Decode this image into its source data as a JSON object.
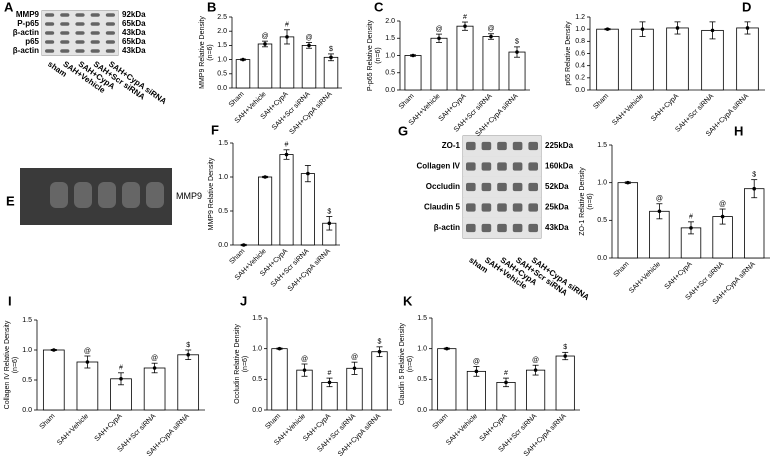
{
  "blots": [
    {
      "panel": "A",
      "rows": [
        {
          "name": "MMP9",
          "size": "92kDa"
        },
        {
          "name": "P-p65",
          "size": "65kDa"
        },
        {
          "name": "β-actin",
          "size": "43kDa"
        },
        {
          "name": "p65",
          "size": "65kDa"
        },
        {
          "name": "β-actin",
          "size": "43kDa"
        }
      ],
      "lanes": [
        "sham",
        "SAH+Vehicle",
        "SAH+CypA",
        "SAH+Scr siRNA",
        "SAH+CypA siRNA"
      ]
    },
    {
      "panel": "E",
      "label": "MMP9"
    },
    {
      "panel": "G",
      "rows": [
        {
          "name": "ZO-1",
          "size": "225kDa"
        },
        {
          "name": "Collagen IV",
          "size": "160kDa"
        },
        {
          "name": "Occludin",
          "size": "52kDa"
        },
        {
          "name": "Claudin 5",
          "size": "25kDa"
        },
        {
          "name": "β-actin",
          "size": "43kDa"
        }
      ],
      "lanes": [
        "sham",
        "SAH+Vehicle",
        "SAH+CypA",
        "SAH+Scr siRNA",
        "SAH+CypA siRNA"
      ]
    }
  ],
  "chart_data": [
    {
      "type": "bar",
      "panel": "B",
      "ylabel": [
        "MMP9 Relative Density",
        "(n=6)"
      ],
      "categories": [
        "Sham",
        "SAH+Vehicle",
        "SAH+CypA",
        "SAH+Scr siRNA",
        "SAH+CypA siRNA"
      ],
      "values": [
        1.0,
        1.55,
        1.8,
        1.5,
        1.08
      ],
      "errors": [
        0.02,
        0.1,
        0.25,
        0.1,
        0.12
      ],
      "annotations": [
        null,
        "@",
        "#",
        "@",
        "$"
      ],
      "ylim": [
        0,
        2.5
      ],
      "yticks": [
        {
          "value": 0,
          "label": "0.0"
        },
        {
          "value": 0.5,
          "label": "0.5"
        },
        {
          "value": 1,
          "label": "1.0"
        },
        {
          "value": 1.5,
          "label": "1.5"
        },
        {
          "value": 2,
          "label": "2.0"
        },
        {
          "value": 2.5,
          "label": "2.5"
        }
      ],
      "color": "#ffffff"
    },
    {
      "type": "bar",
      "panel": "C",
      "ylabel": [
        "P-p65 Relative Density",
        "(n=6)"
      ],
      "categories": [
        "Sham",
        "SAH+Vehicle",
        "SAH+CypA",
        "SAH+Scr siRNA",
        "SAH+CypA siRNA"
      ],
      "values": [
        1.0,
        1.5,
        1.85,
        1.55,
        1.1
      ],
      "errors": [
        0.02,
        0.12,
        0.12,
        0.08,
        0.15
      ],
      "annotations": [
        null,
        "@",
        "#",
        "@",
        "$"
      ],
      "ylim": [
        0,
        2
      ],
      "yticks": [
        {
          "value": 0,
          "label": "0.0"
        },
        {
          "value": 0.5,
          "label": "0.5"
        },
        {
          "value": 1,
          "label": "1.0"
        },
        {
          "value": 1.5,
          "label": "1.5"
        },
        {
          "value": 2,
          "label": "2.0"
        }
      ],
      "color": "#ffffff"
    },
    {
      "type": "bar",
      "panel": "D",
      "ylabel": [
        "p65 Relative Density"
      ],
      "categories": [
        "Sham",
        "SAH+Vehicle",
        "SAH+CypA",
        "SAH+Scr siRNA",
        "SAH+CypA siRNA"
      ],
      "values": [
        1.0,
        1.0,
        1.02,
        0.98,
        1.02
      ],
      "errors": [
        0.01,
        0.12,
        0.1,
        0.14,
        0.1
      ],
      "annotations": [
        null,
        null,
        null,
        null,
        null
      ],
      "ylim": [
        0,
        1.2
      ],
      "yticks": [
        {
          "value": 0,
          "label": "0.0"
        },
        {
          "value": 0.2,
          "label": "0.2"
        },
        {
          "value": 0.4,
          "label": "0.4"
        },
        {
          "value": 0.6,
          "label": "0.6"
        },
        {
          "value": 0.8,
          "label": "0.8"
        },
        {
          "value": 1,
          "label": "1.0"
        },
        {
          "value": 1.2,
          "label": "1.2"
        }
      ],
      "color": "#ffffff"
    },
    {
      "type": "bar",
      "panel": "F",
      "ylabel": [
        "MMP9 Relative Density"
      ],
      "categories": [
        "Sham",
        "SAH+Vehicle",
        "SAH+CypA",
        "SAH+Scr siRNA",
        "SAH+CypA siRNA"
      ],
      "values": [
        0.0,
        1.0,
        1.33,
        1.05,
        0.32
      ],
      "errors": [
        0.01,
        0.01,
        0.07,
        0.12,
        0.1
      ],
      "annotations": [
        null,
        null,
        "#",
        null,
        "$"
      ],
      "ylim": [
        0,
        1.5
      ],
      "yticks": [
        {
          "value": 0,
          "label": "0.0"
        },
        {
          "value": 0.5,
          "label": "0.5"
        },
        {
          "value": 1,
          "label": "1.0"
        },
        {
          "value": 1.5,
          "label": "1.5"
        }
      ],
      "color": "#ffffff"
    },
    {
      "type": "bar",
      "panel": "H",
      "ylabel": [
        "ZO-1 Relative Density",
        "(n=6)"
      ],
      "categories": [
        "Sham",
        "SAH+Vehicle",
        "SAH+CypA",
        "SAH+Scr siRNA",
        "SAH+CypA siRNA"
      ],
      "values": [
        1.0,
        0.62,
        0.4,
        0.55,
        0.92
      ],
      "errors": [
        0.01,
        0.1,
        0.08,
        0.1,
        0.12
      ],
      "annotations": [
        null,
        "@",
        "#",
        "@",
        "$"
      ],
      "ylim": [
        0,
        1.5
      ],
      "yticks": [
        {
          "value": 0,
          "label": "0.0"
        },
        {
          "value": 0.5,
          "label": "0.5"
        },
        {
          "value": 1,
          "label": "1.0"
        },
        {
          "value": 1.5,
          "label": "1.5"
        }
      ],
      "color": "#ffffff"
    },
    {
      "type": "bar",
      "panel": "I",
      "ylabel": [
        "Collagen IV Relative Density",
        "(n=6)"
      ],
      "categories": [
        "Sham",
        "SAH+Vehicle",
        "SAH+CypA",
        "SAH+Scr siRNA",
        "SAH+CypA siRNA"
      ],
      "values": [
        1.0,
        0.8,
        0.52,
        0.7,
        0.92
      ],
      "errors": [
        0.01,
        0.1,
        0.1,
        0.08,
        0.08
      ],
      "annotations": [
        null,
        "@",
        "#",
        "@",
        "$"
      ],
      "ylim": [
        0,
        1.5
      ],
      "yticks": [
        {
          "value": 0,
          "label": "0.0"
        },
        {
          "value": 0.5,
          "label": "0.5"
        },
        {
          "value": 1,
          "label": "1.0"
        },
        {
          "value": 1.5,
          "label": "1.5"
        }
      ],
      "color": "#ffffff"
    },
    {
      "type": "bar",
      "panel": "J",
      "ylabel": [
        "Occludin Relative Density",
        "(n=6)"
      ],
      "categories": [
        "Sham",
        "SAH+Vehicle",
        "SAH+CypA",
        "SAH+Scr siRNA",
        "SAH+CypA siRNA"
      ],
      "values": [
        1.0,
        0.65,
        0.45,
        0.68,
        0.95
      ],
      "errors": [
        0.01,
        0.1,
        0.07,
        0.1,
        0.08
      ],
      "annotations": [
        null,
        "@",
        "#",
        "@",
        "$"
      ],
      "ylim": [
        0,
        1.5
      ],
      "yticks": [
        {
          "value": 0,
          "label": "0.0"
        },
        {
          "value": 0.5,
          "label": "0.5"
        },
        {
          "value": 1,
          "label": "1.0"
        },
        {
          "value": 1.5,
          "label": "1.5"
        }
      ],
      "color": "#ffffff"
    },
    {
      "type": "bar",
      "panel": "K",
      "ylabel": [
        "Claudin 5 Relative Density",
        "(n=6)"
      ],
      "categories": [
        "Sham",
        "SAH+Vehicle",
        "SAH+CypA",
        "SAH+Scr siRNA",
        "SAH+CypA siRNA"
      ],
      "values": [
        1.0,
        0.63,
        0.45,
        0.65,
        0.88
      ],
      "errors": [
        0.01,
        0.08,
        0.07,
        0.08,
        0.06
      ],
      "annotations": [
        null,
        "@",
        "#",
        "@",
        "$"
      ],
      "ylim": [
        0,
        1.5
      ],
      "yticks": [
        {
          "value": 0,
          "label": "0.0"
        },
        {
          "value": 0.5,
          "label": "0.5"
        },
        {
          "value": 1,
          "label": "1.0"
        },
        {
          "value": 1.5,
          "label": "1.5"
        }
      ],
      "color": "#ffffff"
    }
  ]
}
